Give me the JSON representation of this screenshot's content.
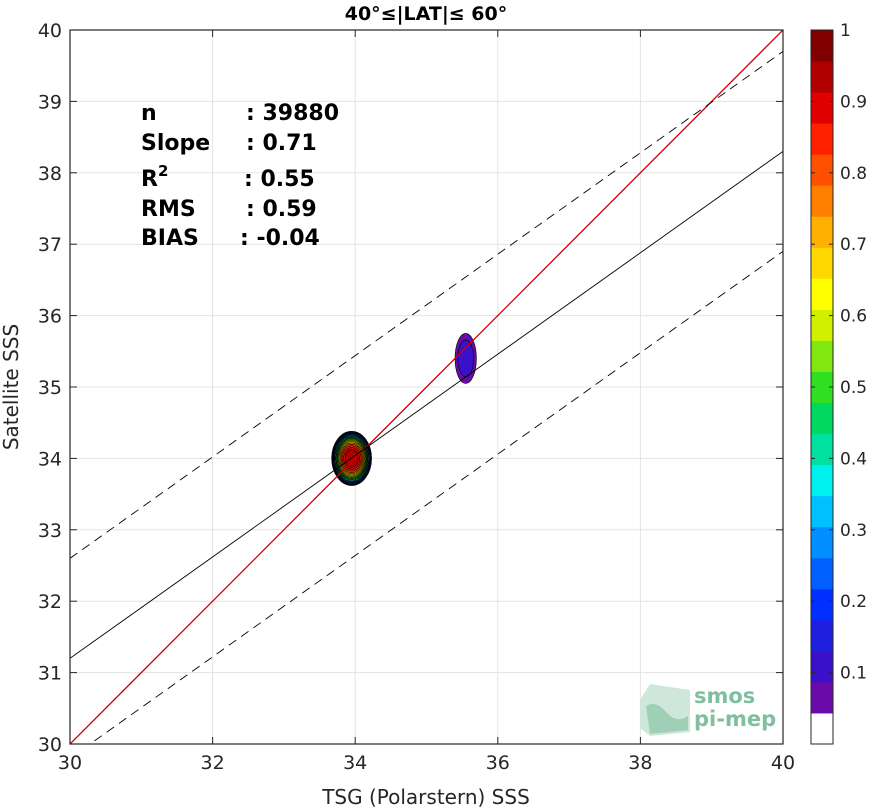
{
  "chart_data": {
    "type": "contour",
    "title": "40°≤|LAT|≤ 60°",
    "xlabel": "TSG (Polarstern) SSS",
    "ylabel": "Satellite SSS",
    "xlim": [
      30,
      40
    ],
    "ylim": [
      30,
      40
    ],
    "xticks": [
      30,
      32,
      34,
      36,
      38,
      40
    ],
    "yticks": [
      30,
      31,
      32,
      33,
      34,
      35,
      36,
      37,
      38,
      39,
      40
    ],
    "grid": true,
    "stats": {
      "n_label": "n",
      "n_value": ": 39880",
      "slope_label": "Slope",
      "slope_value": ": 0.71",
      "r2_label": "R",
      "r2_sup": "2",
      "r2_value": ": 0.55",
      "rms_label": "RMS",
      "rms_value": ": 0.59",
      "bias_label": "BIAS",
      "bias_value": ": -0.04"
    },
    "lines": [
      {
        "role": "one-to-one",
        "color": "#cc0000",
        "style": "solid",
        "x": [
          30,
          40
        ],
        "y": [
          30,
          40
        ]
      },
      {
        "role": "regression",
        "color": "#000000",
        "style": "solid",
        "x": [
          30,
          40
        ],
        "y": [
          31.2,
          38.3
        ]
      },
      {
        "role": "regression-plus-offset",
        "color": "#000000",
        "style": "dashed",
        "x": [
          30,
          40
        ],
        "y": [
          32.6,
          39.7
        ]
      },
      {
        "role": "regression-minus-offset",
        "color": "#000000",
        "style": "dashed",
        "x": [
          30,
          40
        ],
        "y": [
          29.8,
          36.9
        ]
      }
    ],
    "density_peaks": [
      {
        "x": 33.95,
        "y": 34.0,
        "max_level": 0.95,
        "spread_x": 0.28,
        "spread_y": 0.38
      },
      {
        "x": 35.55,
        "y": 35.4,
        "max_level": 0.1,
        "spread_x": 0.15,
        "spread_y": 0.35
      }
    ],
    "colorbar": {
      "range": [
        0,
        1
      ],
      "ticks": [
        "0.1",
        "0.2",
        "0.3",
        "0.4",
        "0.5",
        "0.6",
        "0.7",
        "0.8",
        "0.9",
        "1"
      ],
      "tick_values": [
        0.1,
        0.2,
        0.3,
        0.4,
        0.5,
        0.6,
        0.7,
        0.8,
        0.9,
        1
      ],
      "colors": [
        "#ffffff",
        "#6a0aa8",
        "#3a10c8",
        "#1f1fe0",
        "#0030ff",
        "#0060ff",
        "#0090ff",
        "#00c0ff",
        "#00f0f0",
        "#00e0a0",
        "#00d860",
        "#30e020",
        "#80e810",
        "#d0f000",
        "#ffff00",
        "#ffd800",
        "#ffb000",
        "#ff8000",
        "#ff5000",
        "#ff2000",
        "#e00000",
        "#b00000",
        "#800000"
      ]
    }
  },
  "logo": {
    "line1": "smos",
    "line2": "pi-mep"
  }
}
